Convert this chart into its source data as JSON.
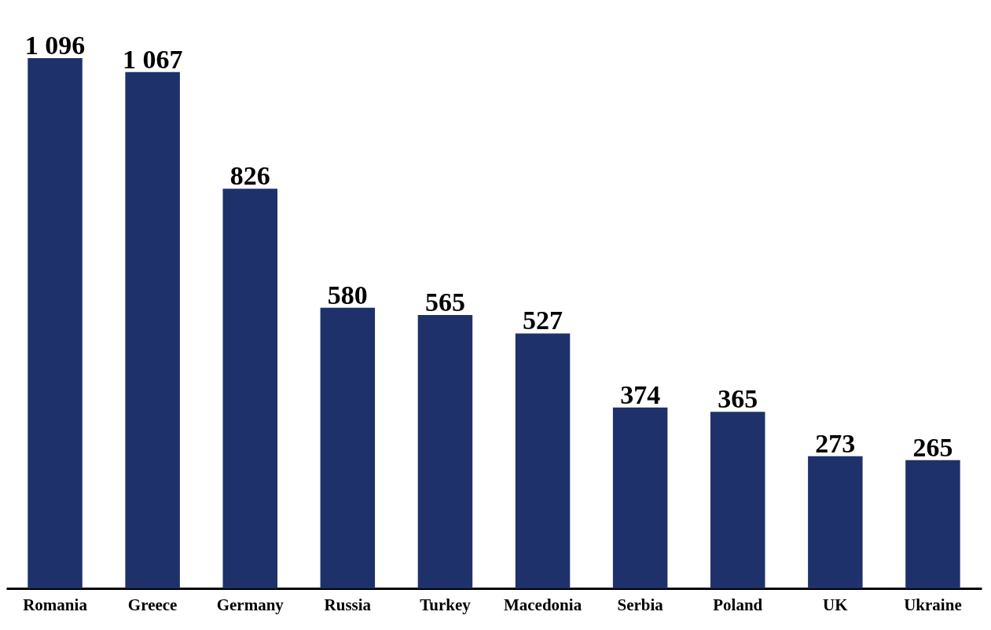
{
  "chart_data": {
    "type": "bar",
    "categories": [
      "Romania",
      "Greece",
      "Germany",
      "Russia",
      "Turkey",
      "Macedonia",
      "Serbia",
      "Poland",
      "UK",
      "Ukraine"
    ],
    "values": [
      1096,
      1067,
      826,
      580,
      565,
      527,
      374,
      365,
      273,
      265
    ],
    "value_labels": [
      "1 096",
      "1 067",
      "826",
      "580",
      "565",
      "527",
      "374",
      "365",
      "273",
      "265"
    ],
    "color": "#1f316b",
    "grid": false
  }
}
